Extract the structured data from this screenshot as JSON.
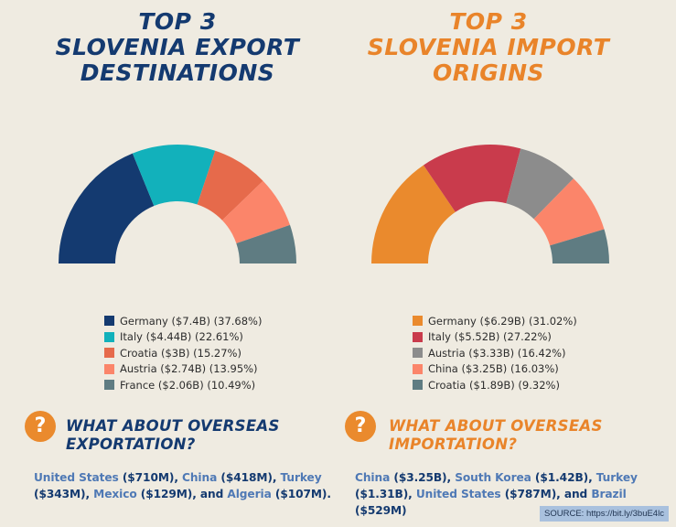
{
  "export_title": [
    "TOP 3",
    "SLOVENIA EXPORT",
    "DESTINATIONS"
  ],
  "import_title": [
    "TOP 3",
    "SLOVENIA IMPORT",
    "ORIGINS"
  ],
  "chart_data": [
    {
      "type": "pie",
      "variant": "half-donut",
      "title": "TOP 3 SLOVENIA EXPORT DESTINATIONS",
      "legend_position": "bottom",
      "categories": [
        "Germany",
        "Italy",
        "Croatia",
        "Austria",
        "France"
      ],
      "values": [
        7.4,
        4.44,
        3,
        2.74,
        2.06
      ],
      "percentages": [
        37.68,
        22.61,
        15.27,
        13.95,
        10.49
      ],
      "colors": [
        "#143a70",
        "#12b1bb",
        "#e66a4b",
        "#fb856a",
        "#5f7c82"
      ],
      "legend_labels": [
        "Germany ($7.4B) (37.68%)",
        "Italy ($4.44B) (22.61%)",
        "Croatia ($3B) (15.27%)",
        "Austria ($2.74B) (13.95%)",
        "France ($2.06B) (10.49%)"
      ]
    },
    {
      "type": "pie",
      "variant": "half-donut",
      "title": "TOP 3 SLOVENIA IMPORT ORIGINS",
      "legend_position": "bottom",
      "categories": [
        "Germany",
        "Italy",
        "Austria",
        "China",
        "Croatia"
      ],
      "values": [
        6.29,
        5.52,
        3.33,
        3.25,
        1.89
      ],
      "percentages": [
        31.02,
        27.22,
        16.42,
        16.03,
        9.32
      ],
      "colors": [
        "#ea8a2d",
        "#c93b4c",
        "#8c8c8c",
        "#fb856a",
        "#5f7c82"
      ],
      "legend_labels": [
        "Germany ($6.29B) (31.02%)",
        "Italy ($5.52B) (27.22%)",
        "Austria ($3.33B) (16.42%)",
        "China ($3.25B) (16.03%)",
        "Croatia ($1.89B) (9.32%)"
      ]
    }
  ],
  "overseas_export": {
    "icon": "question-icon",
    "title": [
      "WHAT ABOUT OVERSEAS",
      "EXPORTATION?"
    ],
    "items": [
      {
        "country": "United States",
        "value": " ($710M), "
      },
      {
        "country": "China",
        "value": " ($418M), "
      },
      {
        "country": "Turkey",
        "value": " ($343M), "
      },
      {
        "country": "Mexico",
        "value": " ($129M), and "
      },
      {
        "country": "Algeria",
        "value": " ($107M)."
      }
    ]
  },
  "overseas_import": {
    "icon": "question-icon",
    "title": [
      "WHAT ABOUT OVERSEAS",
      "IMPORTATION?"
    ],
    "items": [
      {
        "country": "China",
        "value": " ($3.25B), "
      },
      {
        "country": "South Korea",
        "value": " ($1.42B), "
      },
      {
        "country": "Turkey",
        "value": " ($1.31B), "
      },
      {
        "country": "United States",
        "value": " ($787M), and "
      },
      {
        "country": "Brazil",
        "value": " ($529M)"
      }
    ]
  },
  "source": "SOURCE:  https://bit.ly/3buE4lc"
}
